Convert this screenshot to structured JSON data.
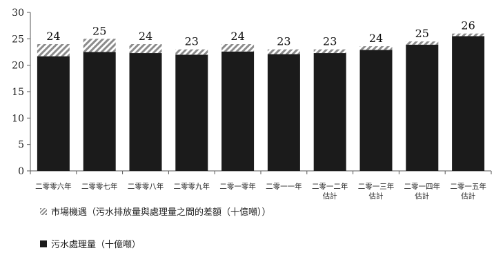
{
  "chart_data": {
    "type": "bar",
    "stacked": true,
    "categories": [
      [
        "二零零六年"
      ],
      [
        "二零零七年"
      ],
      [
        "二零零八年"
      ],
      [
        "二零零九年"
      ],
      [
        "二零一零年"
      ],
      [
        "二零一一年"
      ],
      [
        "二零一二年",
        "估計"
      ],
      [
        "二零一三年",
        "估計"
      ],
      [
        "二零一四年",
        "估計"
      ],
      [
        "二零一五年",
        "估計"
      ]
    ],
    "series": [
      {
        "name": "污水處理量（十億噸）",
        "values": [
          21.7,
          22.5,
          22.3,
          22.0,
          22.6,
          22.1,
          22.3,
          22.9,
          23.9,
          25.5
        ],
        "color": "#1b1b1b",
        "pattern": "solid"
      },
      {
        "name": "市場機遇（污水排放量與處理量之間的差額（十億噸））",
        "values": [
          2.3,
          2.5,
          1.7,
          1.0,
          1.4,
          0.9,
          0.7,
          0.7,
          0.6,
          0.5
        ],
        "color": "#8c8c8c",
        "pattern": "hatch"
      }
    ],
    "total_labels": [
      "24",
      "25",
      "24",
      "23",
      "24",
      "23",
      "23",
      "24",
      "25",
      "26"
    ],
    "ylim": [
      0,
      30
    ],
    "yticks": [
      "0",
      "5",
      "10",
      "15",
      "20",
      "25",
      "30"
    ],
    "grid": false,
    "legend_position": "bottom-left"
  }
}
